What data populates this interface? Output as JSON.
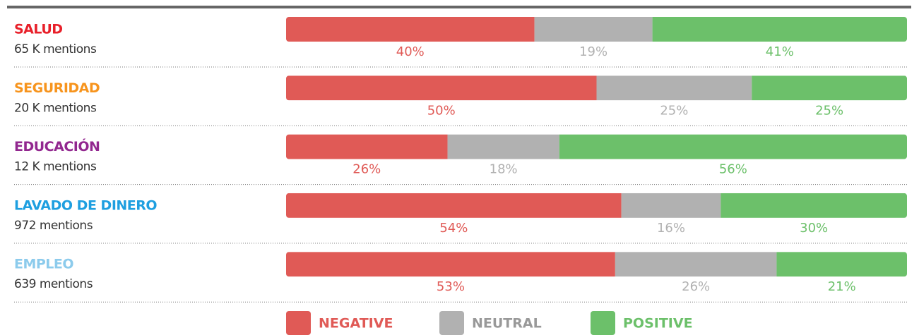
{
  "chart_data": {
    "type": "stacked-bar",
    "categories": [
      "SALUD",
      "SEGURIDAD",
      "EDUCACIÓN",
      "LAVADO DE DINERO",
      "EMPLEO"
    ],
    "category_colors": [
      "#e8202a",
      "#f7941d",
      "#92278f",
      "#1e9fe0",
      "#8ccbec"
    ],
    "mentions": [
      "65 K mentions",
      "20 K mentions",
      "12 K mentions",
      "972 mentions",
      "639 mentions"
    ],
    "xlim": [
      0,
      100
    ],
    "series": [
      {
        "name": "NEGATIVE",
        "color": "#e05a56",
        "values": [
          40,
          50,
          26,
          54,
          53
        ],
        "value_labels": [
          "40%",
          "50%",
          "26%",
          "54%",
          "53%"
        ]
      },
      {
        "name": "NEUTRAL",
        "color": "#b1b1b1",
        "values": [
          19,
          25,
          18,
          16,
          26
        ],
        "value_labels": [
          "19%",
          "25%",
          "18%",
          "16%",
          "26%"
        ]
      },
      {
        "name": "POSITIVE",
        "color": "#6cc06a",
        "values": [
          41,
          25,
          56,
          30,
          21
        ],
        "value_labels": [
          "41%",
          "25%",
          "56%",
          "30%",
          "21%"
        ]
      }
    ]
  }
}
